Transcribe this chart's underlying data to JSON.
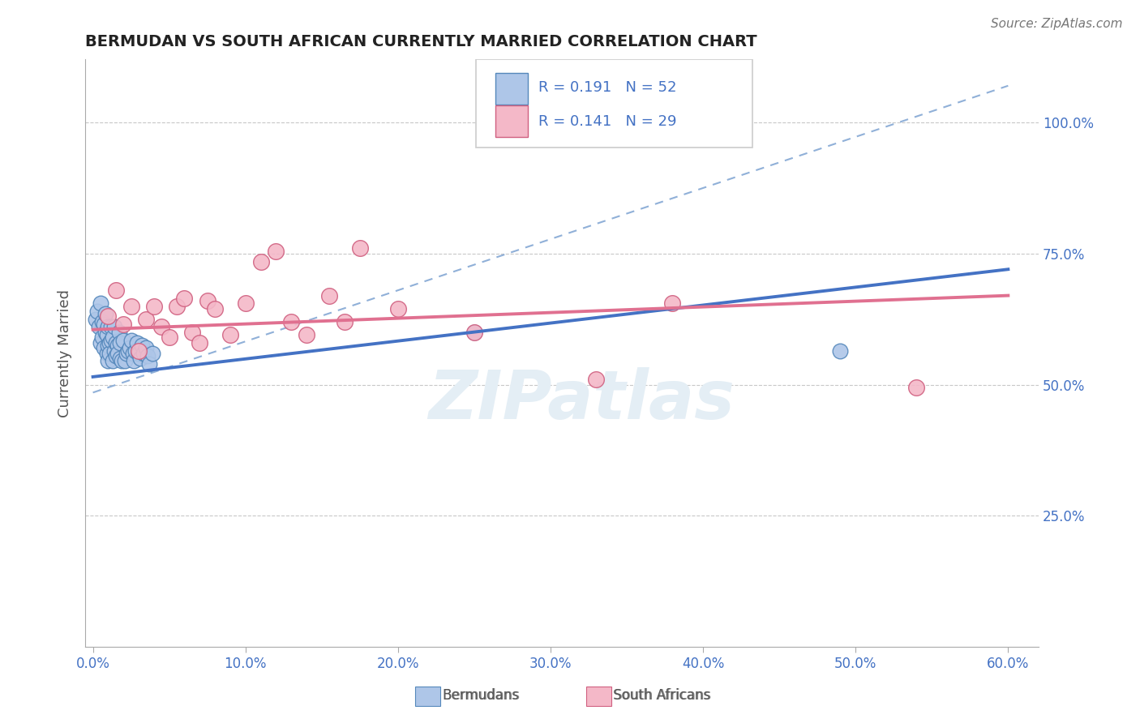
{
  "title": "BERMUDAN VS SOUTH AFRICAN CURRENTLY MARRIED CORRELATION CHART",
  "source": "Source: ZipAtlas.com",
  "ylabel": "Currently Married",
  "x_tick_labels": [
    "0.0%",
    "",
    "",
    "",
    "",
    "",
    "10.0%",
    "",
    "",
    "",
    "",
    "",
    "20.0%",
    "",
    "",
    "",
    "",
    "",
    "30.0%",
    "",
    "",
    "",
    "",
    "",
    "40.0%",
    "",
    "",
    "",
    "",
    "",
    "50.0%",
    "",
    "",
    "",
    "",
    "",
    "60.0%"
  ],
  "x_ticks_major": [
    0.0,
    0.1,
    0.2,
    0.3,
    0.4,
    0.5,
    0.6
  ],
  "x_major_labels": [
    "0.0%",
    "10.0%",
    "20.0%",
    "30.0%",
    "40.0%",
    "50.0%",
    "60.0%"
  ],
  "y_tick_labels": [
    "25.0%",
    "50.0%",
    "75.0%",
    "100.0%"
  ],
  "y_ticks": [
    0.25,
    0.5,
    0.75,
    1.0
  ],
  "xlim": [
    -0.005,
    0.62
  ],
  "ylim": [
    0.0,
    1.12
  ],
  "bermudans_x": [
    0.002,
    0.003,
    0.004,
    0.005,
    0.005,
    0.006,
    0.006,
    0.007,
    0.007,
    0.008,
    0.008,
    0.009,
    0.009,
    0.01,
    0.01,
    0.01,
    0.011,
    0.011,
    0.012,
    0.012,
    0.013,
    0.013,
    0.014,
    0.014,
    0.015,
    0.015,
    0.016,
    0.016,
    0.017,
    0.018,
    0.018,
    0.019,
    0.02,
    0.021,
    0.022,
    0.023,
    0.024,
    0.025,
    0.026,
    0.027,
    0.028,
    0.029,
    0.03,
    0.031,
    0.032,
    0.033,
    0.035,
    0.036,
    0.037,
    0.039,
    0.25,
    0.49
  ],
  "bermudans_y": [
    0.625,
    0.64,
    0.61,
    0.58,
    0.655,
    0.62,
    0.59,
    0.615,
    0.57,
    0.635,
    0.6,
    0.56,
    0.595,
    0.575,
    0.545,
    0.61,
    0.58,
    0.56,
    0.61,
    0.585,
    0.545,
    0.59,
    0.61,
    0.565,
    0.555,
    0.58,
    0.575,
    0.56,
    0.6,
    0.58,
    0.55,
    0.545,
    0.585,
    0.545,
    0.56,
    0.565,
    0.57,
    0.585,
    0.56,
    0.545,
    0.565,
    0.58,
    0.56,
    0.55,
    0.575,
    0.56,
    0.57,
    0.555,
    0.54,
    0.56,
    0.6,
    0.565
  ],
  "south_africans_x": [
    0.01,
    0.015,
    0.02,
    0.025,
    0.03,
    0.035,
    0.04,
    0.045,
    0.05,
    0.055,
    0.06,
    0.065,
    0.07,
    0.075,
    0.08,
    0.09,
    0.1,
    0.11,
    0.12,
    0.13,
    0.14,
    0.155,
    0.165,
    0.175,
    0.2,
    0.25,
    0.33,
    0.38,
    0.54
  ],
  "south_africans_y": [
    0.63,
    0.68,
    0.615,
    0.65,
    0.565,
    0.625,
    0.65,
    0.61,
    0.59,
    0.65,
    0.665,
    0.6,
    0.58,
    0.66,
    0.645,
    0.595,
    0.655,
    0.735,
    0.755,
    0.62,
    0.595,
    0.67,
    0.62,
    0.76,
    0.645,
    0.6,
    0.51,
    0.655,
    0.495
  ],
  "bermudans_color": "#aec6e8",
  "south_africans_color": "#f4b8c8",
  "bermudans_edge_color": "#5588bb",
  "south_africans_edge_color": "#d06080",
  "blue_line_color": "#4472c4",
  "pink_line_color": "#e07090",
  "dashed_line_color": "#90b0d8",
  "blue_line_x": [
    0.0,
    0.6
  ],
  "blue_line_y": [
    0.515,
    0.72
  ],
  "pink_line_x": [
    0.0,
    0.6
  ],
  "pink_line_y": [
    0.605,
    0.67
  ],
  "dashed_line_x": [
    0.0,
    0.6
  ],
  "dashed_line_y": [
    0.485,
    1.07
  ],
  "R_bermudans": "0.191",
  "N_bermudans": "52",
  "R_south_africans": "0.141",
  "N_south_africans": "29",
  "watermark": "ZIPatlas",
  "right_y_labels": [
    "100.0%",
    "75.0%",
    "50.0%",
    "25.0%"
  ],
  "right_y_ticks": [
    1.0,
    0.75,
    0.5,
    0.25
  ],
  "background_color": "#ffffff",
  "grid_color": "#c8c8c8"
}
